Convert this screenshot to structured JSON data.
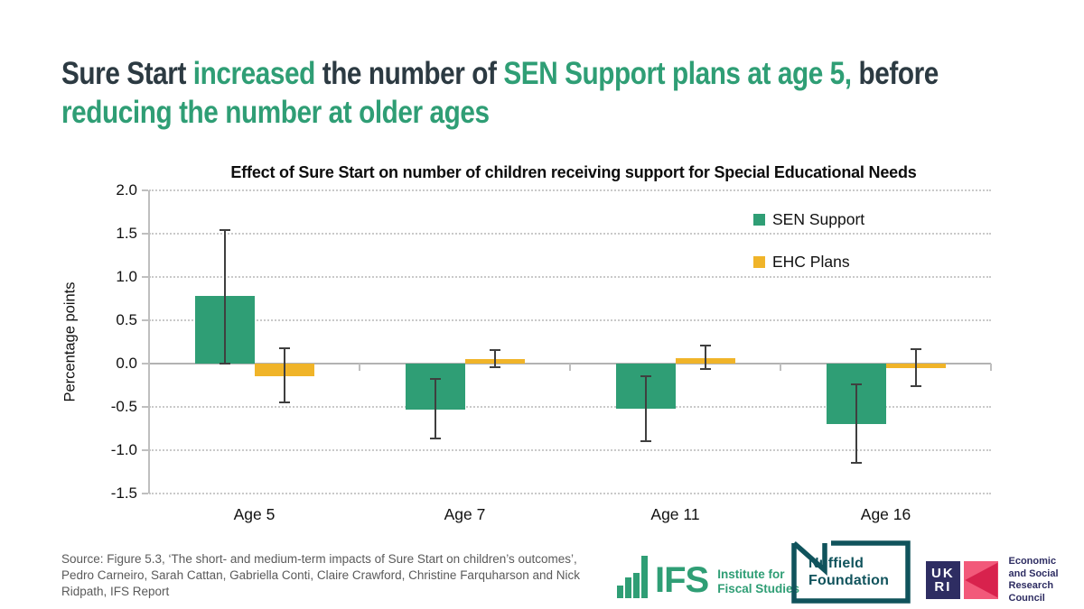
{
  "headline": {
    "line1": [
      {
        "text": "Sure Start ",
        "color": "dark"
      },
      {
        "text": "increased ",
        "color": "green"
      },
      {
        "text": "the number of ",
        "color": "dark"
      },
      {
        "text": "SEN Support plans at age 5,",
        "color": "green"
      },
      {
        "text": " before",
        "color": "dark"
      }
    ],
    "line2": [
      {
        "text": "reducing the number at older ages",
        "color": "green"
      }
    ]
  },
  "chart": {
    "title": "Effect of Sure Start on number of children receiving support for Special Educational Needs",
    "ylabel": "Percentage points",
    "yticks": [
      "2.0",
      "1.5",
      "1.0",
      "0.5",
      "0.0",
      "-0.5",
      "-1.0",
      "-1.5"
    ],
    "ylim": [
      -1.5,
      2.0
    ]
  },
  "chart_data": {
    "type": "bar",
    "title": "Effect of Sure Start on number of children receiving support for Special Educational Needs",
    "xlabel": "",
    "ylabel": "Percentage points",
    "ylim": [
      -1.5,
      2.0
    ],
    "grid": "dotted horizontal gridlines every 0.5, solid zero line",
    "legend_position": "inside top-right",
    "categories": [
      "Age 5",
      "Age 7",
      "Age 11",
      "Age 16"
    ],
    "series": [
      {
        "name": "SEN Support",
        "color": "#2F9E75",
        "values": [
          0.78,
          -0.53,
          -0.52,
          -0.7
        ],
        "ci_low": [
          0.0,
          -0.86,
          -0.9,
          -1.15
        ],
        "ci_high": [
          1.54,
          -0.18,
          -0.15,
          -0.24
        ]
      },
      {
        "name": "EHC Plans",
        "color": "#F0B429",
        "values": [
          -0.15,
          0.05,
          0.06,
          -0.05
        ],
        "ci_low": [
          -0.45,
          -0.04,
          -0.06,
          -0.26
        ],
        "ci_high": [
          0.18,
          0.16,
          0.21,
          0.17
        ]
      }
    ]
  },
  "source": {
    "lines": [
      "Source: Figure 5.3, ‘The short- and medium-term impacts of Sure Start on children’s outcomes’,",
      "Pedro Carneiro, Sarah Cattan, Gabriella Conti, Claire Crawford, Christine Farquharson and Nick",
      "Ridpath, IFS Report"
    ]
  },
  "logos": {
    "ifs": {
      "abbr": "IFS",
      "name_line1": "Institute for",
      "name_line2": "Fiscal Studies",
      "color": "#2F9E75"
    },
    "nuffield": {
      "line1": "Nuffield",
      "line2": "Foundation",
      "color": "#10535C"
    },
    "ukri": {
      "letters_line1": "UK",
      "letters_line2": "RI",
      "council_lines": [
        "Economic",
        "and Social",
        "Research Council"
      ],
      "navy": "#2E2D62",
      "red": "#D8224D",
      "pink": "#F2597A"
    }
  },
  "colors": {
    "headline_dark": "#2C3A42",
    "brand_green": "#2F9E75",
    "accent_yellow": "#F0B429",
    "error_bar": "#3F3F3F",
    "grid": "#C9C9C9",
    "zero_line": "#B3B3B3",
    "source_gray": "#5A5A5A",
    "nuffield_teal": "#10535C"
  }
}
